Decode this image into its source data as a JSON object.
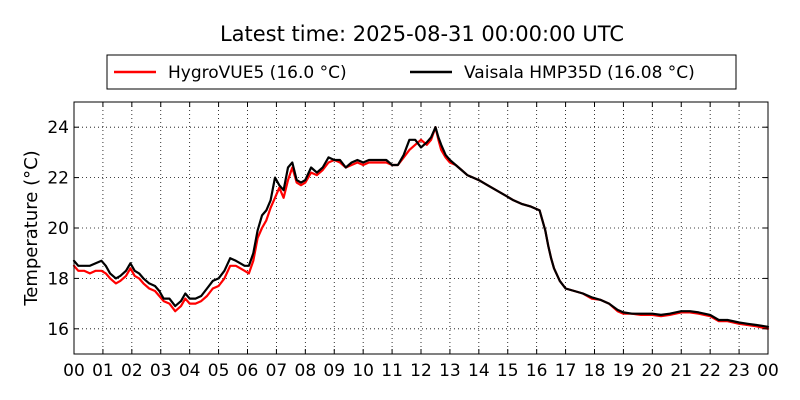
{
  "chart_data": {
    "type": "line",
    "title": "Latest time: 2025-08-31 00:00:00 UTC",
    "xlabel": "",
    "ylabel": "Temperature (°C)",
    "xlim": [
      0,
      24
    ],
    "ylim": [
      15,
      25
    ],
    "xticks": [
      0,
      1,
      2,
      3,
      4,
      5,
      6,
      7,
      8,
      9,
      10,
      11,
      12,
      13,
      14,
      15,
      16,
      17,
      18,
      19,
      20,
      21,
      22,
      23,
      24
    ],
    "xtick_labels": [
      "00",
      "01",
      "02",
      "03",
      "04",
      "05",
      "06",
      "07",
      "08",
      "09",
      "10",
      "11",
      "12",
      "13",
      "14",
      "15",
      "16",
      "17",
      "18",
      "19",
      "20",
      "21",
      "22",
      "23",
      "00"
    ],
    "yticks": [
      16,
      18,
      20,
      22,
      24
    ],
    "ytick_labels": [
      "16",
      "18",
      "20",
      "22",
      "24"
    ],
    "grid": true,
    "legend_position": "top-center",
    "series": [
      {
        "name": "HygroVUE5 (16.0 °C)",
        "color": "#ff0000",
        "x": [
          0,
          0.15,
          0.35,
          0.55,
          0.75,
          0.95,
          1.1,
          1.25,
          1.45,
          1.6,
          1.8,
          1.95,
          2.1,
          2.25,
          2.4,
          2.6,
          2.8,
          2.95,
          3.1,
          3.3,
          3.5,
          3.7,
          3.85,
          4.0,
          4.2,
          4.4,
          4.6,
          4.8,
          5.0,
          5.2,
          5.4,
          5.6,
          5.75,
          5.9,
          6.05,
          6.2,
          6.35,
          6.5,
          6.65,
          6.8,
          6.95,
          7.1,
          7.25,
          7.4,
          7.55,
          7.7,
          7.85,
          8.0,
          8.2,
          8.4,
          8.6,
          8.8,
          9.0,
          9.2,
          9.4,
          9.6,
          9.8,
          10.0,
          10.2,
          10.4,
          10.6,
          10.8,
          11.0,
          11.2,
          11.4,
          11.6,
          11.8,
          12.0,
          12.2,
          12.35,
          12.5,
          12.6,
          12.7,
          12.85,
          13.0,
          13.2,
          13.4,
          13.6,
          13.8,
          14.0,
          14.3,
          14.6,
          14.9,
          15.2,
          15.5,
          15.8,
          16.1,
          16.3,
          16.4,
          16.5,
          16.6,
          16.8,
          17.0,
          17.3,
          17.6,
          17.9,
          18.2,
          18.5,
          18.8,
          19.0,
          19.3,
          19.6,
          20.0,
          20.3,
          20.6,
          21.0,
          21.3,
          21.6,
          22.0,
          22.3,
          22.6,
          23.0,
          23.3,
          23.6,
          24.0
        ],
        "values": [
          18.5,
          18.3,
          18.3,
          18.2,
          18.3,
          18.3,
          18.2,
          18.0,
          17.8,
          17.9,
          18.1,
          18.4,
          18.1,
          18.0,
          17.8,
          17.6,
          17.5,
          17.3,
          17.1,
          17.0,
          16.7,
          16.9,
          17.2,
          17.0,
          17.0,
          17.1,
          17.3,
          17.6,
          17.7,
          18.0,
          18.5,
          18.5,
          18.4,
          18.3,
          18.2,
          18.7,
          19.6,
          20.0,
          20.3,
          20.8,
          21.2,
          21.6,
          21.2,
          21.9,
          22.4,
          21.8,
          21.7,
          21.8,
          22.2,
          22.1,
          22.3,
          22.6,
          22.7,
          22.6,
          22.4,
          22.5,
          22.6,
          22.5,
          22.6,
          22.6,
          22.6,
          22.6,
          22.5,
          22.5,
          22.8,
          23.1,
          23.3,
          23.5,
          23.3,
          23.5,
          24.0,
          23.5,
          23.1,
          22.8,
          22.6,
          22.5,
          22.3,
          22.1,
          22.0,
          21.9,
          21.7,
          21.5,
          21.3,
          21.1,
          20.95,
          20.85,
          20.7,
          19.9,
          19.3,
          18.8,
          18.4,
          17.9,
          17.6,
          17.5,
          17.4,
          17.2,
          17.15,
          17.0,
          16.7,
          16.6,
          16.6,
          16.55,
          16.55,
          16.5,
          16.55,
          16.65,
          16.65,
          16.6,
          16.5,
          16.3,
          16.3,
          16.2,
          16.15,
          16.1,
          16.0
        ]
      },
      {
        "name": "Vaisala HMP35D (16.08 °C)",
        "color": "#000000",
        "x": [
          0,
          0.15,
          0.35,
          0.55,
          0.75,
          0.95,
          1.1,
          1.25,
          1.45,
          1.6,
          1.8,
          1.95,
          2.1,
          2.25,
          2.4,
          2.6,
          2.8,
          2.95,
          3.1,
          3.3,
          3.5,
          3.7,
          3.85,
          4.0,
          4.2,
          4.4,
          4.6,
          4.8,
          5.0,
          5.2,
          5.4,
          5.6,
          5.75,
          5.9,
          6.05,
          6.2,
          6.35,
          6.5,
          6.65,
          6.8,
          6.95,
          7.1,
          7.25,
          7.4,
          7.55,
          7.7,
          7.85,
          8.0,
          8.2,
          8.4,
          8.6,
          8.8,
          9.0,
          9.2,
          9.4,
          9.6,
          9.8,
          10.0,
          10.2,
          10.4,
          10.6,
          10.8,
          11.0,
          11.2,
          11.4,
          11.6,
          11.8,
          12.0,
          12.2,
          12.35,
          12.5,
          12.6,
          12.7,
          12.85,
          13.0,
          13.2,
          13.4,
          13.6,
          13.8,
          14.0,
          14.3,
          14.6,
          14.9,
          15.2,
          15.5,
          15.8,
          16.1,
          16.3,
          16.4,
          16.5,
          16.6,
          16.8,
          17.0,
          17.3,
          17.6,
          17.9,
          18.2,
          18.5,
          18.8,
          19.0,
          19.3,
          19.6,
          20.0,
          20.3,
          20.6,
          21.0,
          21.3,
          21.6,
          22.0,
          22.3,
          22.6,
          23.0,
          23.3,
          23.6,
          24.0
        ],
        "values": [
          18.7,
          18.5,
          18.5,
          18.5,
          18.6,
          18.7,
          18.5,
          18.2,
          18.0,
          18.1,
          18.3,
          18.6,
          18.3,
          18.2,
          18.0,
          17.8,
          17.7,
          17.5,
          17.2,
          17.2,
          16.9,
          17.1,
          17.4,
          17.2,
          17.2,
          17.3,
          17.6,
          17.9,
          18.0,
          18.3,
          18.8,
          18.7,
          18.6,
          18.5,
          18.5,
          19.0,
          19.9,
          20.5,
          20.7,
          21.1,
          22.0,
          21.7,
          21.5,
          22.4,
          22.6,
          21.9,
          21.8,
          21.9,
          22.4,
          22.2,
          22.4,
          22.8,
          22.7,
          22.7,
          22.4,
          22.6,
          22.7,
          22.6,
          22.7,
          22.7,
          22.7,
          22.7,
          22.5,
          22.5,
          22.9,
          23.5,
          23.5,
          23.2,
          23.4,
          23.6,
          24.0,
          23.6,
          23.3,
          22.9,
          22.7,
          22.5,
          22.3,
          22.1,
          22.0,
          21.9,
          21.7,
          21.5,
          21.3,
          21.1,
          20.95,
          20.85,
          20.7,
          19.9,
          19.3,
          18.8,
          18.4,
          17.9,
          17.6,
          17.5,
          17.4,
          17.25,
          17.15,
          17.0,
          16.75,
          16.65,
          16.6,
          16.6,
          16.6,
          16.55,
          16.6,
          16.7,
          16.7,
          16.65,
          16.55,
          16.35,
          16.35,
          16.25,
          16.2,
          16.15,
          16.08
        ]
      }
    ]
  }
}
